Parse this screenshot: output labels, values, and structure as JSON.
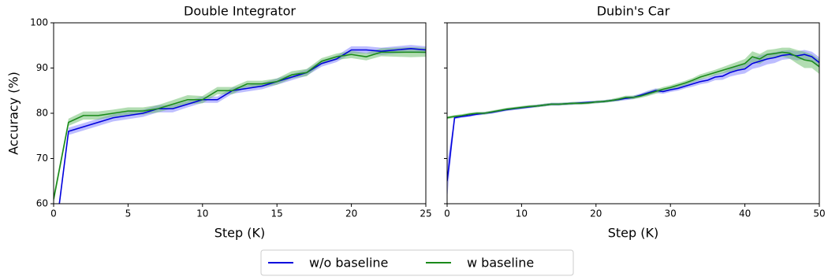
{
  "chart_data": [
    {
      "type": "line",
      "title": "Double Integrator",
      "xlabel": "Step (K)",
      "ylabel": "Accuracy (%)",
      "x": [
        0,
        1,
        2,
        3,
        4,
        5,
        6,
        7,
        8,
        9,
        10,
        11,
        12,
        13,
        14,
        15,
        16,
        17,
        18,
        19,
        20,
        21,
        22,
        23,
        24,
        25
      ],
      "xlim": [
        0,
        25
      ],
      "xticks": [
        0,
        5,
        10,
        15,
        20,
        25
      ],
      "ylim": [
        60,
        100
      ],
      "yticks": [
        60,
        70,
        80,
        90,
        100
      ],
      "series": [
        {
          "name": "w/o baseline",
          "color": "#0000dd",
          "band_color": "#7b7bff",
          "values": [
            50,
            76,
            77,
            78,
            79,
            79.5,
            80,
            81,
            81,
            82,
            83,
            83,
            85,
            85.5,
            86,
            87,
            88,
            89,
            91,
            92,
            94,
            94,
            93.7,
            94,
            94.3,
            94
          ],
          "errors": [
            1,
            0.8,
            0.8,
            0.8,
            0.8,
            0.8,
            0.8,
            0.8,
            0.8,
            0.7,
            0.7,
            0.7,
            0.7,
            0.7,
            0.7,
            0.7,
            0.7,
            0.7,
            0.7,
            0.7,
            0.8,
            0.8,
            0.8,
            0.8,
            0.8,
            0.8
          ]
        },
        {
          "name": "w baseline",
          "color": "#1a8a1a",
          "band_color": "#66bb66",
          "values": [
            61,
            78,
            79.5,
            79.5,
            80,
            80.5,
            80.5,
            81,
            82,
            83,
            83,
            85,
            85,
            86.5,
            86.5,
            87,
            88.5,
            89,
            91.5,
            92.5,
            93,
            92.5,
            93.5,
            93.5,
            93.5,
            93.5
          ],
          "errors": [
            1,
            0.8,
            0.9,
            0.9,
            0.8,
            0.8,
            0.8,
            0.8,
            0.9,
            1,
            0.8,
            0.8,
            0.8,
            0.7,
            0.7,
            0.7,
            0.8,
            0.8,
            0.7,
            0.7,
            0.8,
            0.8,
            0.9,
            1,
            1.1,
            1
          ]
        }
      ]
    },
    {
      "type": "line",
      "title": "Dubin's Car",
      "xlabel": "Step (K)",
      "x": [
        0,
        1,
        2,
        3,
        4,
        5,
        6,
        7,
        8,
        9,
        10,
        11,
        12,
        13,
        14,
        15,
        16,
        17,
        18,
        19,
        20,
        21,
        22,
        23,
        24,
        25,
        26,
        27,
        28,
        29,
        30,
        31,
        32,
        33,
        34,
        35,
        36,
        37,
        38,
        39,
        40,
        41,
        42,
        43,
        44,
        45,
        46,
        47,
        48,
        49,
        50
      ],
      "xlim": [
        0,
        50
      ],
      "xticks": [
        0,
        10,
        20,
        30,
        40,
        50
      ],
      "ylim": [
        60,
        100
      ],
      "yticks": [
        60,
        70,
        80,
        90,
        100
      ],
      "series": [
        {
          "color": "#0000dd",
          "band_color": "#7b7bff",
          "values": [
            65,
            79,
            79.3,
            79.5,
            79.8,
            80,
            80.2,
            80.5,
            80.8,
            81,
            81.2,
            81.4,
            81.6,
            81.8,
            82,
            82,
            82.1,
            82.2,
            82.3,
            82.4,
            82.5,
            82.6,
            82.8,
            83,
            83.3,
            83.5,
            84,
            84.5,
            85,
            84.8,
            85.2,
            85.5,
            86,
            86.5,
            87,
            87.3,
            88,
            88.2,
            89,
            89.5,
            89.8,
            91,
            91.5,
            92,
            92.3,
            92.8,
            93,
            92.7,
            93,
            92.5,
            91.2
          ],
          "errors": [
            4,
            0.3,
            0.3,
            0.3,
            0.3,
            0.3,
            0.3,
            0.3,
            0.3,
            0.3,
            0.3,
            0.3,
            0.3,
            0.3,
            0.3,
            0.3,
            0.3,
            0.3,
            0.3,
            0.3,
            0.3,
            0.3,
            0.3,
            0.3,
            0.4,
            0.4,
            0.4,
            0.5,
            0.5,
            0.5,
            0.5,
            0.5,
            0.5,
            0.6,
            0.6,
            0.6,
            0.7,
            0.8,
            0.9,
            1,
            1,
            1.2,
            1.3,
            1.2,
            1.2,
            1,
            1,
            1,
            1,
            1.1,
            1.2
          ]
        },
        {
          "color": "#1a8a1a",
          "band_color": "#66bb66",
          "values": [
            79,
            79.3,
            79.5,
            79.8,
            80,
            80,
            80.3,
            80.6,
            80.9,
            81.1,
            81.3,
            81.5,
            81.6,
            81.8,
            82,
            82,
            82.1,
            82.2,
            82.2,
            82.3,
            82.5,
            82.6,
            82.8,
            83.1,
            83.5,
            83.5,
            83.8,
            84.3,
            84.8,
            85.3,
            85.7,
            86.2,
            86.7,
            87.3,
            88,
            88.5,
            89,
            89.5,
            90,
            90.5,
            91,
            92.5,
            92,
            93,
            93.2,
            93.5,
            93.3,
            92.5,
            91.8,
            91.5,
            90.3
          ],
          "errors": [
            0.3,
            0.3,
            0.3,
            0.3,
            0.3,
            0.3,
            0.3,
            0.3,
            0.3,
            0.3,
            0.3,
            0.3,
            0.3,
            0.3,
            0.3,
            0.3,
            0.3,
            0.3,
            0.3,
            0.3,
            0.3,
            0.3,
            0.3,
            0.4,
            0.4,
            0.4,
            0.4,
            0.5,
            0.5,
            0.5,
            0.5,
            0.5,
            0.5,
            0.5,
            0.6,
            0.6,
            0.6,
            0.7,
            0.8,
            0.9,
            1,
            1.2,
            1.1,
            1,
            1,
            1,
            1.2,
            1.5,
            1.8,
            1.5,
            1.6
          ]
        }
      ]
    }
  ]
}
